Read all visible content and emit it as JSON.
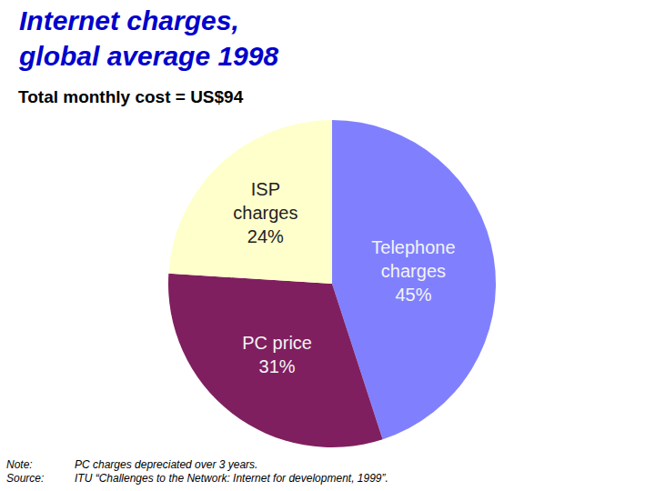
{
  "chart_data": {
    "type": "pie",
    "title": "Internet charges, global average 1998",
    "subtitle": "Total monthly cost = US$94",
    "categories": [
      "Telephone charges",
      "PC price",
      "ISP charges"
    ],
    "values": [
      45,
      31,
      24
    ],
    "value_labels": [
      "45%",
      "31%",
      "24%"
    ],
    "colors": [
      "#8080ff",
      "#7f1f5f",
      "#ffffcc"
    ],
    "data_labels": true,
    "notes": [
      {
        "label": "Note:",
        "text": "PC charges depreciated over 3 years."
      },
      {
        "label": "Source:",
        "text": "ITU “Challenges to the Network: Internet for development, 1999”."
      }
    ]
  }
}
